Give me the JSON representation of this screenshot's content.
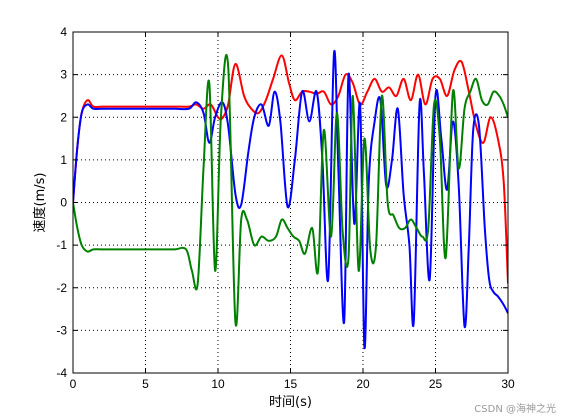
{
  "chart_data": {
    "type": "line",
    "xlabel": "时间(s)",
    "ylabel": "速度(m/s)",
    "xlim": [
      0,
      30
    ],
    "ylim": [
      -4,
      4
    ],
    "x_ticks": [
      0,
      5,
      10,
      15,
      20,
      25,
      30
    ],
    "y_ticks": [
      -4,
      -3,
      -2,
      -1,
      0,
      1,
      2,
      3,
      4
    ],
    "grid": true,
    "series": [
      {
        "color": "#ff0000",
        "x": [
          0,
          0.3,
          0.6,
          1.0,
          1.4,
          2,
          3,
          4,
          5,
          6,
          7,
          8,
          8.5,
          9,
          9.5,
          10,
          10.3,
          10.7,
          11.2,
          11.8,
          12.3,
          12.8,
          13.3,
          13.8,
          14.4,
          14.9,
          15.3,
          15.8,
          16.3,
          16.8,
          17.3,
          17.8,
          18.3,
          18.8,
          19.3,
          19.8,
          20.3,
          20.8,
          21.3,
          21.8,
          22.3,
          22.8,
          23.3,
          23.8,
          24.3,
          24.8,
          25.3,
          25.8,
          26.3,
          26.8,
          27.3,
          27.8,
          28.3,
          28.8,
          29.3,
          29.7,
          30
        ],
        "y": [
          0,
          1.3,
          2.1,
          2.4,
          2.25,
          2.25,
          2.25,
          2.25,
          2.25,
          2.25,
          2.25,
          2.25,
          2.3,
          2.2,
          2.3,
          2.0,
          1.98,
          2.3,
          3.25,
          2.5,
          2.2,
          2.1,
          2.4,
          2.9,
          3.45,
          2.8,
          2.4,
          2.6,
          2.6,
          2.55,
          2.6,
          2.3,
          2.5,
          3.0,
          2.8,
          2.3,
          2.6,
          2.9,
          2.6,
          2.7,
          2.5,
          2.9,
          2.4,
          3.0,
          2.3,
          2.9,
          2.9,
          2.5,
          3.1,
          3.3,
          2.6,
          1.8,
          1.4,
          2.0,
          1.5,
          0.5,
          -1.9
        ]
      },
      {
        "color": "#0000ff",
        "x": [
          0,
          0.3,
          0.6,
          1.0,
          1.4,
          2,
          3,
          4,
          5,
          6,
          7,
          8,
          8.5,
          9,
          9.4,
          9.8,
          10.3,
          10.7,
          11.2,
          11.6,
          12.1,
          12.5,
          13.0,
          13.5,
          13.9,
          14.3,
          14.8,
          15.3,
          15.8,
          16.3,
          16.8,
          17.2,
          17.6,
          18.0,
          18.3,
          18.7,
          19.0,
          19.4,
          19.8,
          20.1,
          20.4,
          20.8,
          21.2,
          21.6,
          22.0,
          22.4,
          22.8,
          23.2,
          23.5,
          23.9,
          24.2,
          24.6,
          25.0,
          25.4,
          25.8,
          26.2,
          26.6,
          27.0,
          27.3,
          27.6,
          28.0,
          28.4,
          28.7,
          29.0,
          29.3,
          29.7,
          30
        ],
        "y": [
          0,
          1.3,
          2.1,
          2.3,
          2.2,
          2.2,
          2.2,
          2.2,
          2.2,
          2.2,
          2.2,
          2.2,
          2.35,
          2.1,
          1.4,
          2.0,
          2.35,
          1.8,
          0.2,
          -0.05,
          1.2,
          2.0,
          2.3,
          1.8,
          2.6,
          1.9,
          -0.1,
          1.0,
          2.6,
          1.9,
          2.6,
          1.0,
          -1.8,
          3.5,
          0.8,
          -2.8,
          3.0,
          -0.5,
          2.3,
          -3.4,
          0.5,
          1.9,
          2.4,
          0.4,
          1.0,
          2.2,
          0.2,
          -1.0,
          -2.8,
          2.3,
          0.7,
          -1.8,
          2.5,
          1.5,
          0.3,
          1.9,
          0.4,
          -2.9,
          -1.0,
          1.7,
          1.8,
          -0.6,
          -1.8,
          -2.1,
          -2.2,
          -2.4,
          -2.6
        ]
      },
      {
        "color": "#008000",
        "x": [
          0,
          0.3,
          0.6,
          1.0,
          1.4,
          2,
          3,
          4,
          5,
          6,
          7,
          7.8,
          8.2,
          8.6,
          9.0,
          9.4,
          9.8,
          10.2,
          10.7,
          11.2,
          11.6,
          12.0,
          12.5,
          13.0,
          13.5,
          14.0,
          14.4,
          14.8,
          15.2,
          15.6,
          16.0,
          16.5,
          16.9,
          17.3,
          17.8,
          18.2,
          18.6,
          19.0,
          19.3,
          19.7,
          20.1,
          20.5,
          20.9,
          21.3,
          21.7,
          22.1,
          22.5,
          22.9,
          23.3,
          23.7,
          24.1,
          24.5,
          24.9,
          25.3,
          25.7,
          26.2,
          26.6,
          27.0,
          27.4,
          27.8,
          28.2,
          28.6,
          29.0,
          29.4,
          29.7,
          30
        ],
        "y": [
          0,
          -0.6,
          -1.0,
          -1.15,
          -1.1,
          -1.1,
          -1.1,
          -1.1,
          -1.1,
          -1.1,
          -1.1,
          -1.1,
          -1.6,
          -1.9,
          0.8,
          2.8,
          -1.6,
          2.0,
          3.2,
          -2.8,
          -0.4,
          -0.4,
          -1.0,
          -0.8,
          -0.9,
          -0.8,
          -0.4,
          -0.6,
          -0.8,
          -0.9,
          -1.2,
          -0.6,
          -1.6,
          1.7,
          -0.8,
          2.1,
          -0.7,
          -1.3,
          2.5,
          -1.6,
          1.5,
          -1.1,
          -1.0,
          2.5,
          0.0,
          -0.3,
          -0.6,
          -0.6,
          -0.4,
          -0.6,
          -0.8,
          -0.6,
          2.3,
          1.5,
          -1.3,
          2.6,
          0.8,
          2.2,
          2.6,
          2.9,
          2.4,
          2.3,
          2.6,
          2.5,
          2.3,
          2.0
        ]
      }
    ],
    "watermark": "CSDN @海神之光"
  }
}
